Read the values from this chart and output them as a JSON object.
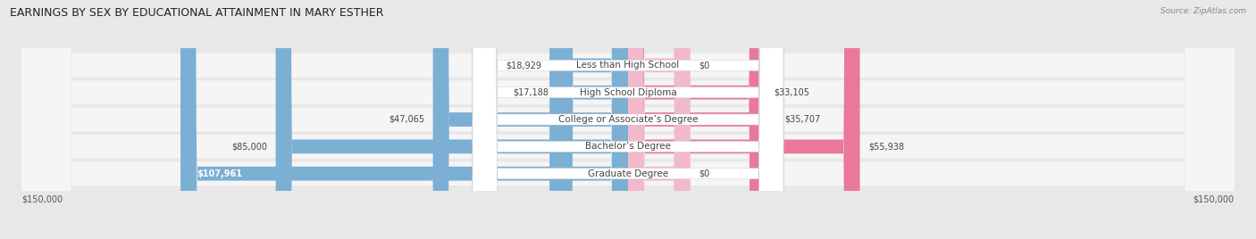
{
  "title": "EARNINGS BY SEX BY EDUCATIONAL ATTAINMENT IN MARY ESTHER",
  "source": "Source: ZipAtlas.com",
  "categories": [
    "Less than High School",
    "High School Diploma",
    "College or Associate’s Degree",
    "Bachelor’s Degree",
    "Graduate Degree"
  ],
  "male_values": [
    18929,
    17188,
    47065,
    85000,
    107961
  ],
  "female_values": [
    0,
    33105,
    35707,
    55938,
    0
  ],
  "male_color": "#7bafd4",
  "female_color": "#e8799a",
  "female_color_zero": "#f2b8cc",
  "max_value": 150000,
  "xlabel_left": "$150,000",
  "xlabel_right": "$150,000",
  "bar_height": 0.52,
  "background_color": "#e8e8e8",
  "row_bg_color": "#f5f5f5",
  "title_fontsize": 9,
  "label_fontsize": 7.5,
  "value_fontsize": 7,
  "legend_fontsize": 7.5
}
